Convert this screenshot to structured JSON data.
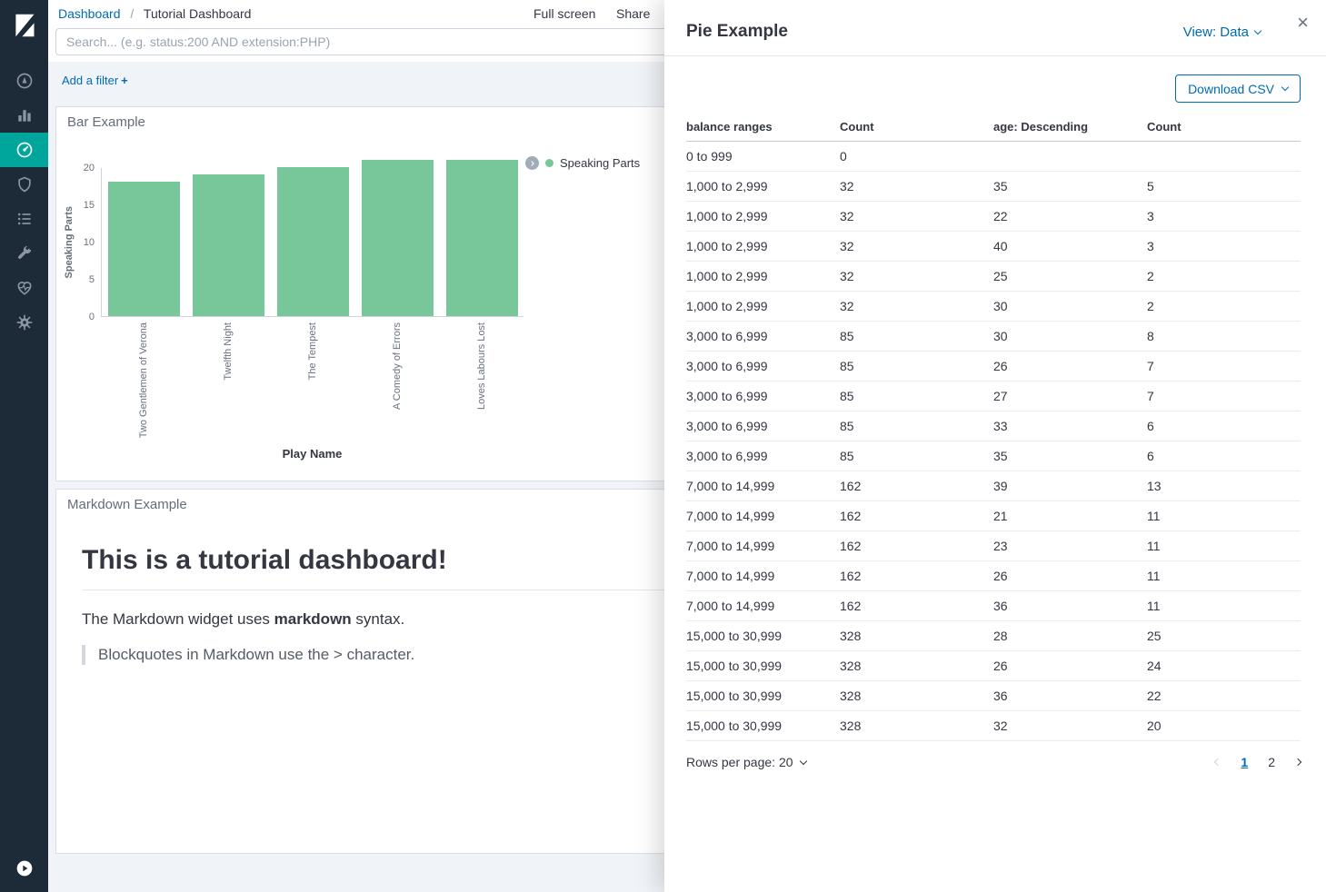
{
  "colors": {
    "link": "#006bb4",
    "nav_active": "#00a69b",
    "bar": "#78c79a",
    "sidebar_bg": "#1d2a38"
  },
  "sidebar": {
    "logo_icon": "kibana-logo",
    "items": [
      {
        "name": "discover",
        "icon": "compass-icon",
        "active": false
      },
      {
        "name": "visualize",
        "icon": "bar-chart-icon",
        "active": false
      },
      {
        "name": "dashboard",
        "icon": "gauge-icon",
        "active": true
      },
      {
        "name": "timelion",
        "icon": "shield-icon",
        "active": false
      },
      {
        "name": "logs",
        "icon": "list-icon",
        "active": false
      },
      {
        "name": "dev-tools",
        "icon": "wrench-icon",
        "active": false
      },
      {
        "name": "monitoring",
        "icon": "heartbeat-icon",
        "active": false
      },
      {
        "name": "management",
        "icon": "gear-icon",
        "active": false
      }
    ],
    "collapse_icon": "play-circle-icon"
  },
  "header": {
    "breadcrumb": {
      "root": "Dashboard",
      "separator": "/",
      "current": "Tutorial Dashboard"
    },
    "actions": {
      "full_screen": "Full screen",
      "share": "Share"
    }
  },
  "search": {
    "placeholder": "Search... (e.g. status:200 AND extension:PHP)"
  },
  "filters": {
    "add_label": "Add a filter",
    "plus": "+"
  },
  "panels": {
    "bar": {
      "title": "Bar Example",
      "legend_label": "Speaking Parts"
    },
    "markdown": {
      "title": "Markdown Example",
      "heading": "This is a tutorial dashboard!",
      "paragraph_prefix": "The Markdown widget uses ",
      "paragraph_bold": "markdown",
      "paragraph_suffix": " syntax.",
      "blockquote": "Blockquotes in Markdown use the > character."
    }
  },
  "chart_data": {
    "type": "bar",
    "title": "Bar Example",
    "categories": [
      "Two Gentlemen of Verona",
      "Twelfth Night",
      "The Tempest",
      "A Comedy of Errors",
      "Loves Labours Lost"
    ],
    "values": [
      18,
      19,
      20,
      21,
      21
    ],
    "xlabel": "Play Name",
    "ylabel": "Speaking Parts",
    "ylim": [
      0,
      20
    ],
    "yticks": [
      0,
      5,
      10,
      15,
      20
    ],
    "legend": [
      "Speaking Parts"
    ],
    "legend_position": "right-top",
    "grid": false,
    "bar_color": "#78c79a"
  },
  "flyout": {
    "title": "Pie Example",
    "view_selector": "View: Data",
    "close_icon": "×",
    "download_button": "Download CSV",
    "table": {
      "columns": [
        "balance ranges",
        "Count",
        "age: Descending",
        "Count"
      ],
      "rows": [
        [
          "0 to 999",
          "0",
          "",
          ""
        ],
        [
          "1,000 to 2,999",
          "32",
          "35",
          "5"
        ],
        [
          "1,000 to 2,999",
          "32",
          "22",
          "3"
        ],
        [
          "1,000 to 2,999",
          "32",
          "40",
          "3"
        ],
        [
          "1,000 to 2,999",
          "32",
          "25",
          "2"
        ],
        [
          "1,000 to 2,999",
          "32",
          "30",
          "2"
        ],
        [
          "3,000 to 6,999",
          "85",
          "30",
          "8"
        ],
        [
          "3,000 to 6,999",
          "85",
          "26",
          "7"
        ],
        [
          "3,000 to 6,999",
          "85",
          "27",
          "7"
        ],
        [
          "3,000 to 6,999",
          "85",
          "33",
          "6"
        ],
        [
          "3,000 to 6,999",
          "85",
          "35",
          "6"
        ],
        [
          "7,000 to 14,999",
          "162",
          "39",
          "13"
        ],
        [
          "7,000 to 14,999",
          "162",
          "21",
          "11"
        ],
        [
          "7,000 to 14,999",
          "162",
          "23",
          "11"
        ],
        [
          "7,000 to 14,999",
          "162",
          "26",
          "11"
        ],
        [
          "7,000 to 14,999",
          "162",
          "36",
          "11"
        ],
        [
          "15,000 to 30,999",
          "328",
          "28",
          "25"
        ],
        [
          "15,000 to 30,999",
          "328",
          "26",
          "24"
        ],
        [
          "15,000 to 30,999",
          "328",
          "36",
          "22"
        ],
        [
          "15,000 to 30,999",
          "328",
          "32",
          "20"
        ]
      ]
    },
    "rows_per_page": "Rows per page: 20",
    "pagination": {
      "pages": [
        "1",
        "2"
      ],
      "active": "1"
    }
  }
}
